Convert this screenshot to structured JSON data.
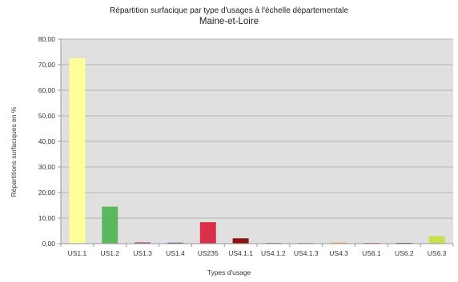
{
  "chart_data": {
    "type": "bar",
    "title": "Répartition surfacique par type d'usages à l'échelle départementale",
    "subtitle": "Maine-et-Loire",
    "xlabel": "Types d'usage",
    "ylabel": "Répartitions surfaciques en %",
    "categories": [
      "US1.1",
      "US1.2",
      "US1.3",
      "US1.4",
      "US235",
      "US4.1.1",
      "US4.1.2",
      "US4.1.3",
      "US4.3",
      "US6.1",
      "US6.2",
      "US6.3"
    ],
    "values": [
      72.5,
      14.5,
      0.5,
      0.4,
      8.4,
      2.1,
      0.3,
      0.1,
      0.4,
      0.1,
      0.3,
      3.0
    ],
    "colors": [
      "#ffff99",
      "#5cb85c",
      "#a0428c",
      "#3a5fa0",
      "#d9304a",
      "#8b1414",
      "#7a7a7a",
      "#9a9a9a",
      "#f0a030",
      "#e06060",
      "#404040",
      "#c8e050"
    ],
    "yticks": [
      "0,00",
      "10,00",
      "20,00",
      "30,00",
      "40,00",
      "50,00",
      "60,00",
      "70,00",
      "80,00"
    ],
    "ylim": [
      0,
      80
    ],
    "grid": true,
    "plot_background": "#e0e0e0"
  }
}
